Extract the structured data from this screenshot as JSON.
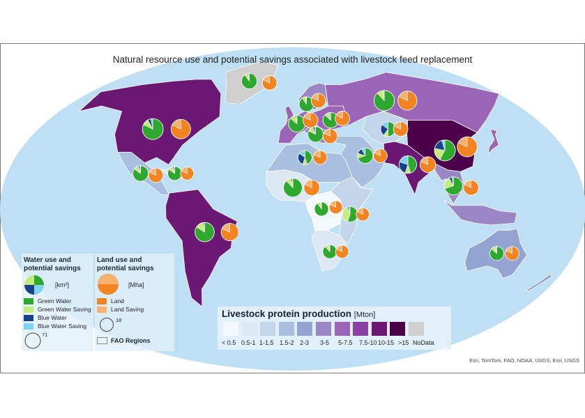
{
  "title": "Natural resource use and potential savings associated with livestock feed replacement",
  "credits": "Esri, TomTom, FAO, NOAA, USGS, Esri, USGS",
  "colors": {
    "ocean": "#bfdff4",
    "green_water": "#2ea82e",
    "green_water_saving": "#c4ec7a",
    "blue_water": "#17418d",
    "blue_water_saving": "#7ed3f0",
    "land": "#f48321",
    "land_saving": "#f7b36d"
  },
  "water_legend": {
    "title": "Water use and potential savings",
    "unit": "[km³]",
    "items": [
      {
        "label": "Green Water",
        "color": "#2ea82e"
      },
      {
        "label": "Green Water Saving",
        "color": "#c4ec7a"
      },
      {
        "label": "Blue Water",
        "color": "#17418d"
      },
      {
        "label": "Blue Water Saving",
        "color": "#7ed3f0"
      }
    ],
    "size_value": "71"
  },
  "land_legend": {
    "title": "Land use and potential savings",
    "unit": "[Mha]",
    "items": [
      {
        "label": "Land",
        "color": "#f48321"
      },
      {
        "label": "Land Saving",
        "color": "#f7b36d"
      }
    ],
    "size_value": "18",
    "regions_label": "FAO Regions"
  },
  "production_legend": {
    "title": "Livestock protein production",
    "unit": "[Mton]",
    "classes": [
      {
        "label": "< 0.5",
        "color": "#f4f9fd"
      },
      {
        "label": "0.5-1",
        "color": "#dce8f3"
      },
      {
        "label": "1-1.5",
        "color": "#c3d5ea"
      },
      {
        "label": "1.5-2",
        "color": "#a9bfe0"
      },
      {
        "label": "2-3",
        "color": "#93a4d3"
      },
      {
        "label": "3-5",
        "color": "#9b86c6"
      },
      {
        "label": "5-7.5",
        "color": "#9a65b7"
      },
      {
        "label": "7.5-10",
        "color": "#8b3fa3"
      },
      {
        "label": "10-15",
        "color": "#6b1774"
      },
      {
        "label": ">15",
        "color": "#4b0049"
      },
      {
        "label": "NoData",
        "color": "#cfcfcf"
      }
    ]
  },
  "regions": [
    {
      "name": "Greenland",
      "class": "NoData"
    },
    {
      "name": "North America",
      "class": "10-15"
    },
    {
      "name": "Central America",
      "class": "1.5-2"
    },
    {
      "name": "Caribbean",
      "class": "0.5-1"
    },
    {
      "name": "South America",
      "class": "10-15"
    },
    {
      "name": "Northern Europe",
      "class": "3-5"
    },
    {
      "name": "Western Europe",
      "class": "5-7.5"
    },
    {
      "name": "Southern Europe",
      "class": "3-5"
    },
    {
      "name": "Eastern Europe",
      "class": "5-7.5"
    },
    {
      "name": "North Africa",
      "class": "1.5-2"
    },
    {
      "name": "Western Africa",
      "class": "0.5-1"
    },
    {
      "name": "Central Africa",
      "class": "< 0.5"
    },
    {
      "name": "Eastern Africa",
      "class": "1-1.5"
    },
    {
      "name": "Southern Africa",
      "class": "0.5-1"
    },
    {
      "name": "Western Asia",
      "class": "1.5-2"
    },
    {
      "name": "Central Asia",
      "class": "1-1.5"
    },
    {
      "name": "South Asia",
      "class": "10-15"
    },
    {
      "name": "East Asia",
      "class": ">15"
    },
    {
      "name": "Southeast Asia",
      "class": "3-5"
    },
    {
      "name": "Oceania",
      "class": "2-3"
    }
  ],
  "water_pies": [
    {
      "region": "Greenland",
      "lon": -42,
      "lat": 72,
      "size": 0.55,
      "green": 0.9,
      "green_saving": 0.06,
      "blue": 0.02,
      "blue_saving": 0.02
    },
    {
      "region": "North America",
      "lon": -100,
      "lat": 45,
      "size": 1.0,
      "green": 0.82,
      "green_saving": 0.1,
      "blue": 0.05,
      "blue_saving": 0.03
    },
    {
      "region": "Central America",
      "lon": -98,
      "lat": 20,
      "size": 0.55,
      "green": 0.85,
      "green_saving": 0.1,
      "blue": 0.03,
      "blue_saving": 0.02
    },
    {
      "region": "Caribbean",
      "lon": -76,
      "lat": 20,
      "size": 0.45,
      "green": 0.85,
      "green_saving": 0.1,
      "blue": 0.03,
      "blue_saving": 0.02
    },
    {
      "region": "South America",
      "lon": -56,
      "lat": -13,
      "size": 0.85,
      "green": 0.84,
      "green_saving": 0.13,
      "blue": 0.02,
      "blue_saving": 0.01
    },
    {
      "region": "Northern Europe",
      "lon": 11,
      "lat": 59,
      "size": 0.5,
      "green": 0.9,
      "green_saving": 0.08,
      "blue": 0.01,
      "blue_saving": 0.01
    },
    {
      "region": "Western Europe",
      "lon": 3,
      "lat": 48,
      "size": 0.65,
      "green": 0.86,
      "green_saving": 0.11,
      "blue": 0.02,
      "blue_saving": 0.01
    },
    {
      "region": "Southern Europe",
      "lon": 16,
      "lat": 42,
      "size": 0.55,
      "green": 0.82,
      "green_saving": 0.12,
      "blue": 0.04,
      "blue_saving": 0.02
    },
    {
      "region": "Eastern Europe",
      "lon": 28,
      "lat": 50,
      "size": 0.55,
      "green": 0.87,
      "green_saving": 0.1,
      "blue": 0.02,
      "blue_saving": 0.01
    },
    {
      "region": "Russian Federation",
      "lon": 75,
      "lat": 61,
      "size": 0.95,
      "green": 0.88,
      "green_saving": 0.1,
      "blue": 0.01,
      "blue_saving": 0.01
    },
    {
      "region": "North Africa",
      "lon": 8,
      "lat": 29,
      "size": 0.45,
      "green": 0.45,
      "green_saving": 0.1,
      "blue": 0.3,
      "blue_saving": 0.15
    },
    {
      "region": "Western Africa",
      "lon": 0,
      "lat": 12,
      "size": 0.8,
      "green": 0.88,
      "green_saving": 0.09,
      "blue": 0.02,
      "blue_saving": 0.01
    },
    {
      "region": "Central Africa",
      "lon": 18,
      "lat": 0,
      "size": 0.45,
      "green": 0.9,
      "green_saving": 0.08,
      "blue": 0.01,
      "blue_saving": 0.01
    },
    {
      "region": "Eastern Africa",
      "lon": 36,
      "lat": -3,
      "size": 0.55,
      "green": 0.55,
      "green_saving": 0.4,
      "blue": 0.03,
      "blue_saving": 0.02
    },
    {
      "region": "Southern Africa",
      "lon": 24,
      "lat": -24,
      "size": 0.45,
      "green": 0.88,
      "green_saving": 0.09,
      "blue": 0.02,
      "blue_saving": 0.01
    },
    {
      "region": "Western Asia",
      "lon": 48,
      "lat": 30,
      "size": 0.55,
      "green": 0.7,
      "green_saving": 0.1,
      "blue": 0.12,
      "blue_saving": 0.08
    },
    {
      "region": "Central Asia",
      "lon": 68,
      "lat": 45,
      "size": 0.5,
      "green": 0.5,
      "green_saving": 0.1,
      "blue": 0.25,
      "blue_saving": 0.15
    },
    {
      "region": "South Asia",
      "lon": 75,
      "lat": 25,
      "size": 0.7,
      "green": 0.45,
      "green_saving": 0.1,
      "blue": 0.25,
      "blue_saving": 0.2
    },
    {
      "region": "East Asia",
      "lon": 102,
      "lat": 33,
      "size": 1.0,
      "green": 0.58,
      "green_saving": 0.2,
      "blue": 0.17,
      "blue_saving": 0.05
    },
    {
      "region": "Southeast Asia",
      "lon": 102,
      "lat": 13,
      "size": 0.75,
      "green": 0.7,
      "green_saving": 0.22,
      "blue": 0.05,
      "blue_saving": 0.03
    },
    {
      "region": "Oceania",
      "lon": 133,
      "lat": -25,
      "size": 0.45,
      "green": 0.86,
      "green_saving": 0.1,
      "blue": 0.02,
      "blue_saving": 0.02
    }
  ],
  "land_pies": [
    {
      "region": "Greenland",
      "lon": -22,
      "lat": 71,
      "size": 0.55,
      "land": 0.82,
      "land_saving": 0.18
    },
    {
      "region": "North America",
      "lon": -80,
      "lat": 45,
      "size": 1.0,
      "land": 0.82,
      "land_saving": 0.18
    },
    {
      "region": "Central America",
      "lon": -88,
      "lat": 19,
      "size": 0.55,
      "land": 0.82,
      "land_saving": 0.18
    },
    {
      "region": "Caribbean",
      "lon": -68,
      "lat": 20,
      "size": 0.45,
      "land": 0.82,
      "land_saving": 0.18
    },
    {
      "region": "South America",
      "lon": -40,
      "lat": -13,
      "size": 0.8,
      "land": 0.82,
      "land_saving": 0.18
    },
    {
      "region": "Northern Europe",
      "lon": 21,
      "lat": 61,
      "size": 0.55,
      "land": 0.82,
      "land_saving": 0.18
    },
    {
      "region": "Western Europe",
      "lon": 13,
      "lat": 50,
      "size": 0.6,
      "land": 0.82,
      "land_saving": 0.18
    },
    {
      "region": "Southern Europe",
      "lon": 26,
      "lat": 41,
      "size": 0.55,
      "land": 0.82,
      "land_saving": 0.18
    },
    {
      "region": "Eastern Europe",
      "lon": 37,
      "lat": 51,
      "size": 0.55,
      "land": 0.82,
      "land_saving": 0.18
    },
    {
      "region": "Russian Federation",
      "lon": 94,
      "lat": 61,
      "size": 0.95,
      "land": 0.82,
      "land_saving": 0.18
    },
    {
      "region": "North Africa",
      "lon": 18,
      "lat": 29,
      "size": 0.5,
      "land": 0.82,
      "land_saving": 0.18
    },
    {
      "region": "Western Africa",
      "lon": 12,
      "lat": 12,
      "size": 0.65,
      "land": 0.82,
      "land_saving": 0.18
    },
    {
      "region": "Central Africa",
      "lon": 27,
      "lat": 1,
      "size": 0.45,
      "land": 0.82,
      "land_saving": 0.18
    },
    {
      "region": "Eastern Africa",
      "lon": 44,
      "lat": -3,
      "size": 0.45,
      "land": 0.82,
      "land_saving": 0.18
    },
    {
      "region": "Southern Africa",
      "lon": 32,
      "lat": -24,
      "size": 0.45,
      "land": 0.82,
      "land_saving": 0.18
    },
    {
      "region": "Western Asia",
      "lon": 58,
      "lat": 30,
      "size": 0.5,
      "land": 0.82,
      "land_saving": 0.18
    },
    {
      "region": "Central Asia",
      "lon": 77,
      "lat": 45,
      "size": 0.55,
      "land": 0.82,
      "land_saving": 0.18
    },
    {
      "region": "South Asia",
      "lon": 88,
      "lat": 25,
      "size": 0.65,
      "land": 0.82,
      "land_saving": 0.18
    },
    {
      "region": "East Asia",
      "lon": 118,
      "lat": 35,
      "size": 1.05,
      "land": 0.82,
      "land_saving": 0.18
    },
    {
      "region": "Southeast Asia",
      "lon": 113,
      "lat": 12,
      "size": 0.6,
      "land": 0.82,
      "land_saving": 0.18
    },
    {
      "region": "Oceania",
      "lon": 143,
      "lat": -25,
      "size": 0.5,
      "land": 0.82,
      "land_saving": 0.18
    }
  ]
}
